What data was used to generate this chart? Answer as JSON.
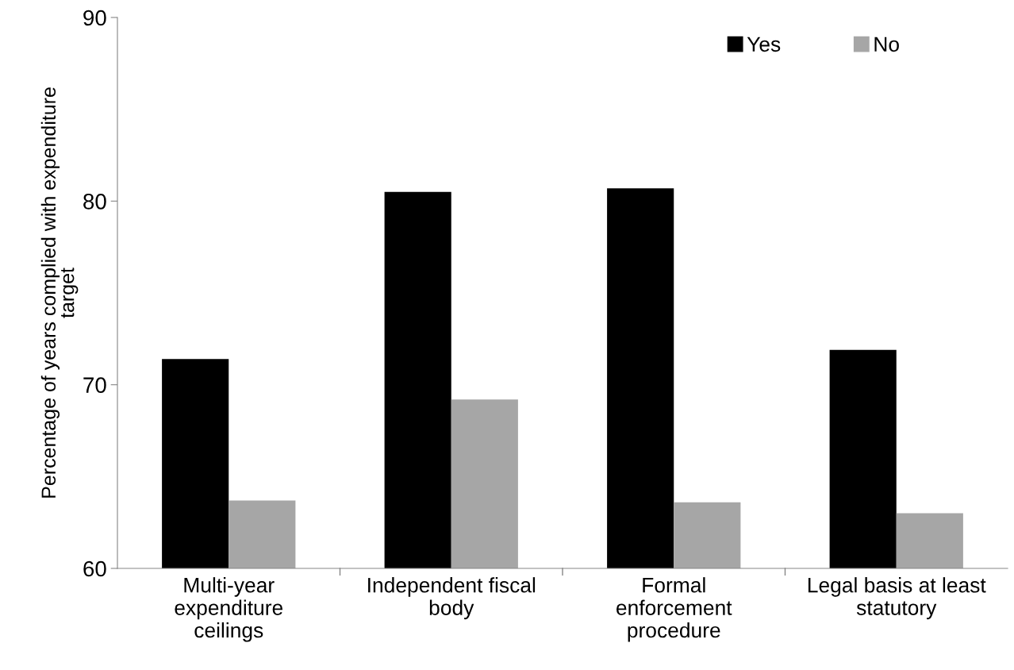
{
  "chart_data": {
    "type": "bar",
    "ylabel": "Percentage of years complied with expenditure\ntarget",
    "categories": [
      "Multi-year\nexpenditure\nceilings",
      "Independent fiscal\nbody",
      "Formal\nenforcement\nprocedure",
      "Legal basis at least\nstatutory"
    ],
    "series": [
      {
        "name": "Yes",
        "color": "#000000",
        "values": [
          71.4,
          80.5,
          80.7,
          71.9
        ]
      },
      {
        "name": "No",
        "color": "#a6a6a6",
        "values": [
          63.7,
          69.2,
          63.6,
          63.0
        ]
      }
    ],
    "ylim": [
      60,
      90
    ],
    "yticks": [
      60,
      70,
      80,
      90
    ],
    "grid": false,
    "legend": "top right"
  }
}
